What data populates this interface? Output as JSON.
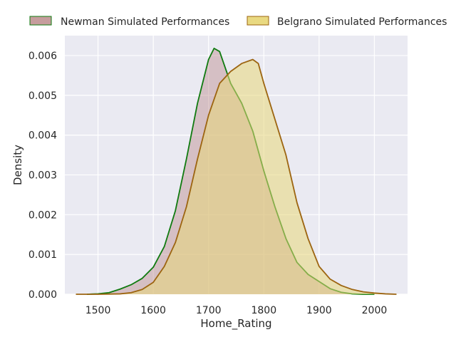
{
  "chart_data": {
    "type": "area",
    "title": "",
    "xlabel": "Home_Rating",
    "ylabel": "Density",
    "xlim": [
      1440,
      2060
    ],
    "ylim": [
      0,
      0.0065
    ],
    "xticks": [
      1500,
      1600,
      1700,
      1800,
      1900,
      2000
    ],
    "yticks": [
      0,
      0.001,
      0.002,
      0.003,
      0.004,
      0.005,
      0.006
    ],
    "xtick_labels": [
      "1500",
      "1600",
      "1700",
      "1800",
      "1900",
      "2000"
    ],
    "ytick_labels": [
      "0.000",
      "0.001",
      "0.002",
      "0.003",
      "0.004",
      "0.005",
      "0.006"
    ],
    "grid": true,
    "legend_position": "top",
    "background": "#eaeaf2",
    "series": [
      {
        "name": "Newman Simulated Performances",
        "line_color": "#0f7a0f",
        "fill_color": "#bc8c8c",
        "fill_opacity": 0.45,
        "x": [
          1480,
          1500,
          1520,
          1540,
          1560,
          1580,
          1600,
          1620,
          1640,
          1660,
          1680,
          1700,
          1710,
          1720,
          1730,
          1740,
          1760,
          1780,
          1800,
          1820,
          1840,
          1860,
          1880,
          1900,
          1920,
          1940,
          1960,
          1980,
          2000
        ],
        "y": [
          0.0,
          1e-05,
          4e-05,
          0.00013,
          0.00024,
          0.0004,
          0.00068,
          0.0012,
          0.0021,
          0.0034,
          0.0048,
          0.0059,
          0.00618,
          0.0061,
          0.0057,
          0.0053,
          0.0048,
          0.0041,
          0.0031,
          0.0022,
          0.0014,
          0.0008,
          0.0005,
          0.00032,
          0.00014,
          5e-05,
          1e-05,
          0.0,
          0.0
        ]
      },
      {
        "name": "Belgrano Simulated Performances",
        "line_color": "#9c6410",
        "fill_color": "#e8d77a",
        "fill_opacity": 0.55,
        "x": [
          1460,
          1500,
          1540,
          1560,
          1580,
          1600,
          1620,
          1640,
          1660,
          1680,
          1700,
          1720,
          1740,
          1760,
          1780,
          1790,
          1800,
          1820,
          1840,
          1860,
          1880,
          1900,
          1920,
          1940,
          1960,
          1980,
          2000,
          2020,
          2040
        ],
        "y": [
          0.0,
          0.0,
          1e-05,
          4e-05,
          0.00012,
          0.0003,
          0.0007,
          0.0013,
          0.0022,
          0.0034,
          0.0045,
          0.0053,
          0.0056,
          0.0058,
          0.0059,
          0.0058,
          0.0053,
          0.0044,
          0.0035,
          0.0023,
          0.0014,
          0.0007,
          0.00038,
          0.00022,
          0.00012,
          6e-05,
          3e-05,
          1e-05,
          0.0
        ]
      }
    ]
  }
}
